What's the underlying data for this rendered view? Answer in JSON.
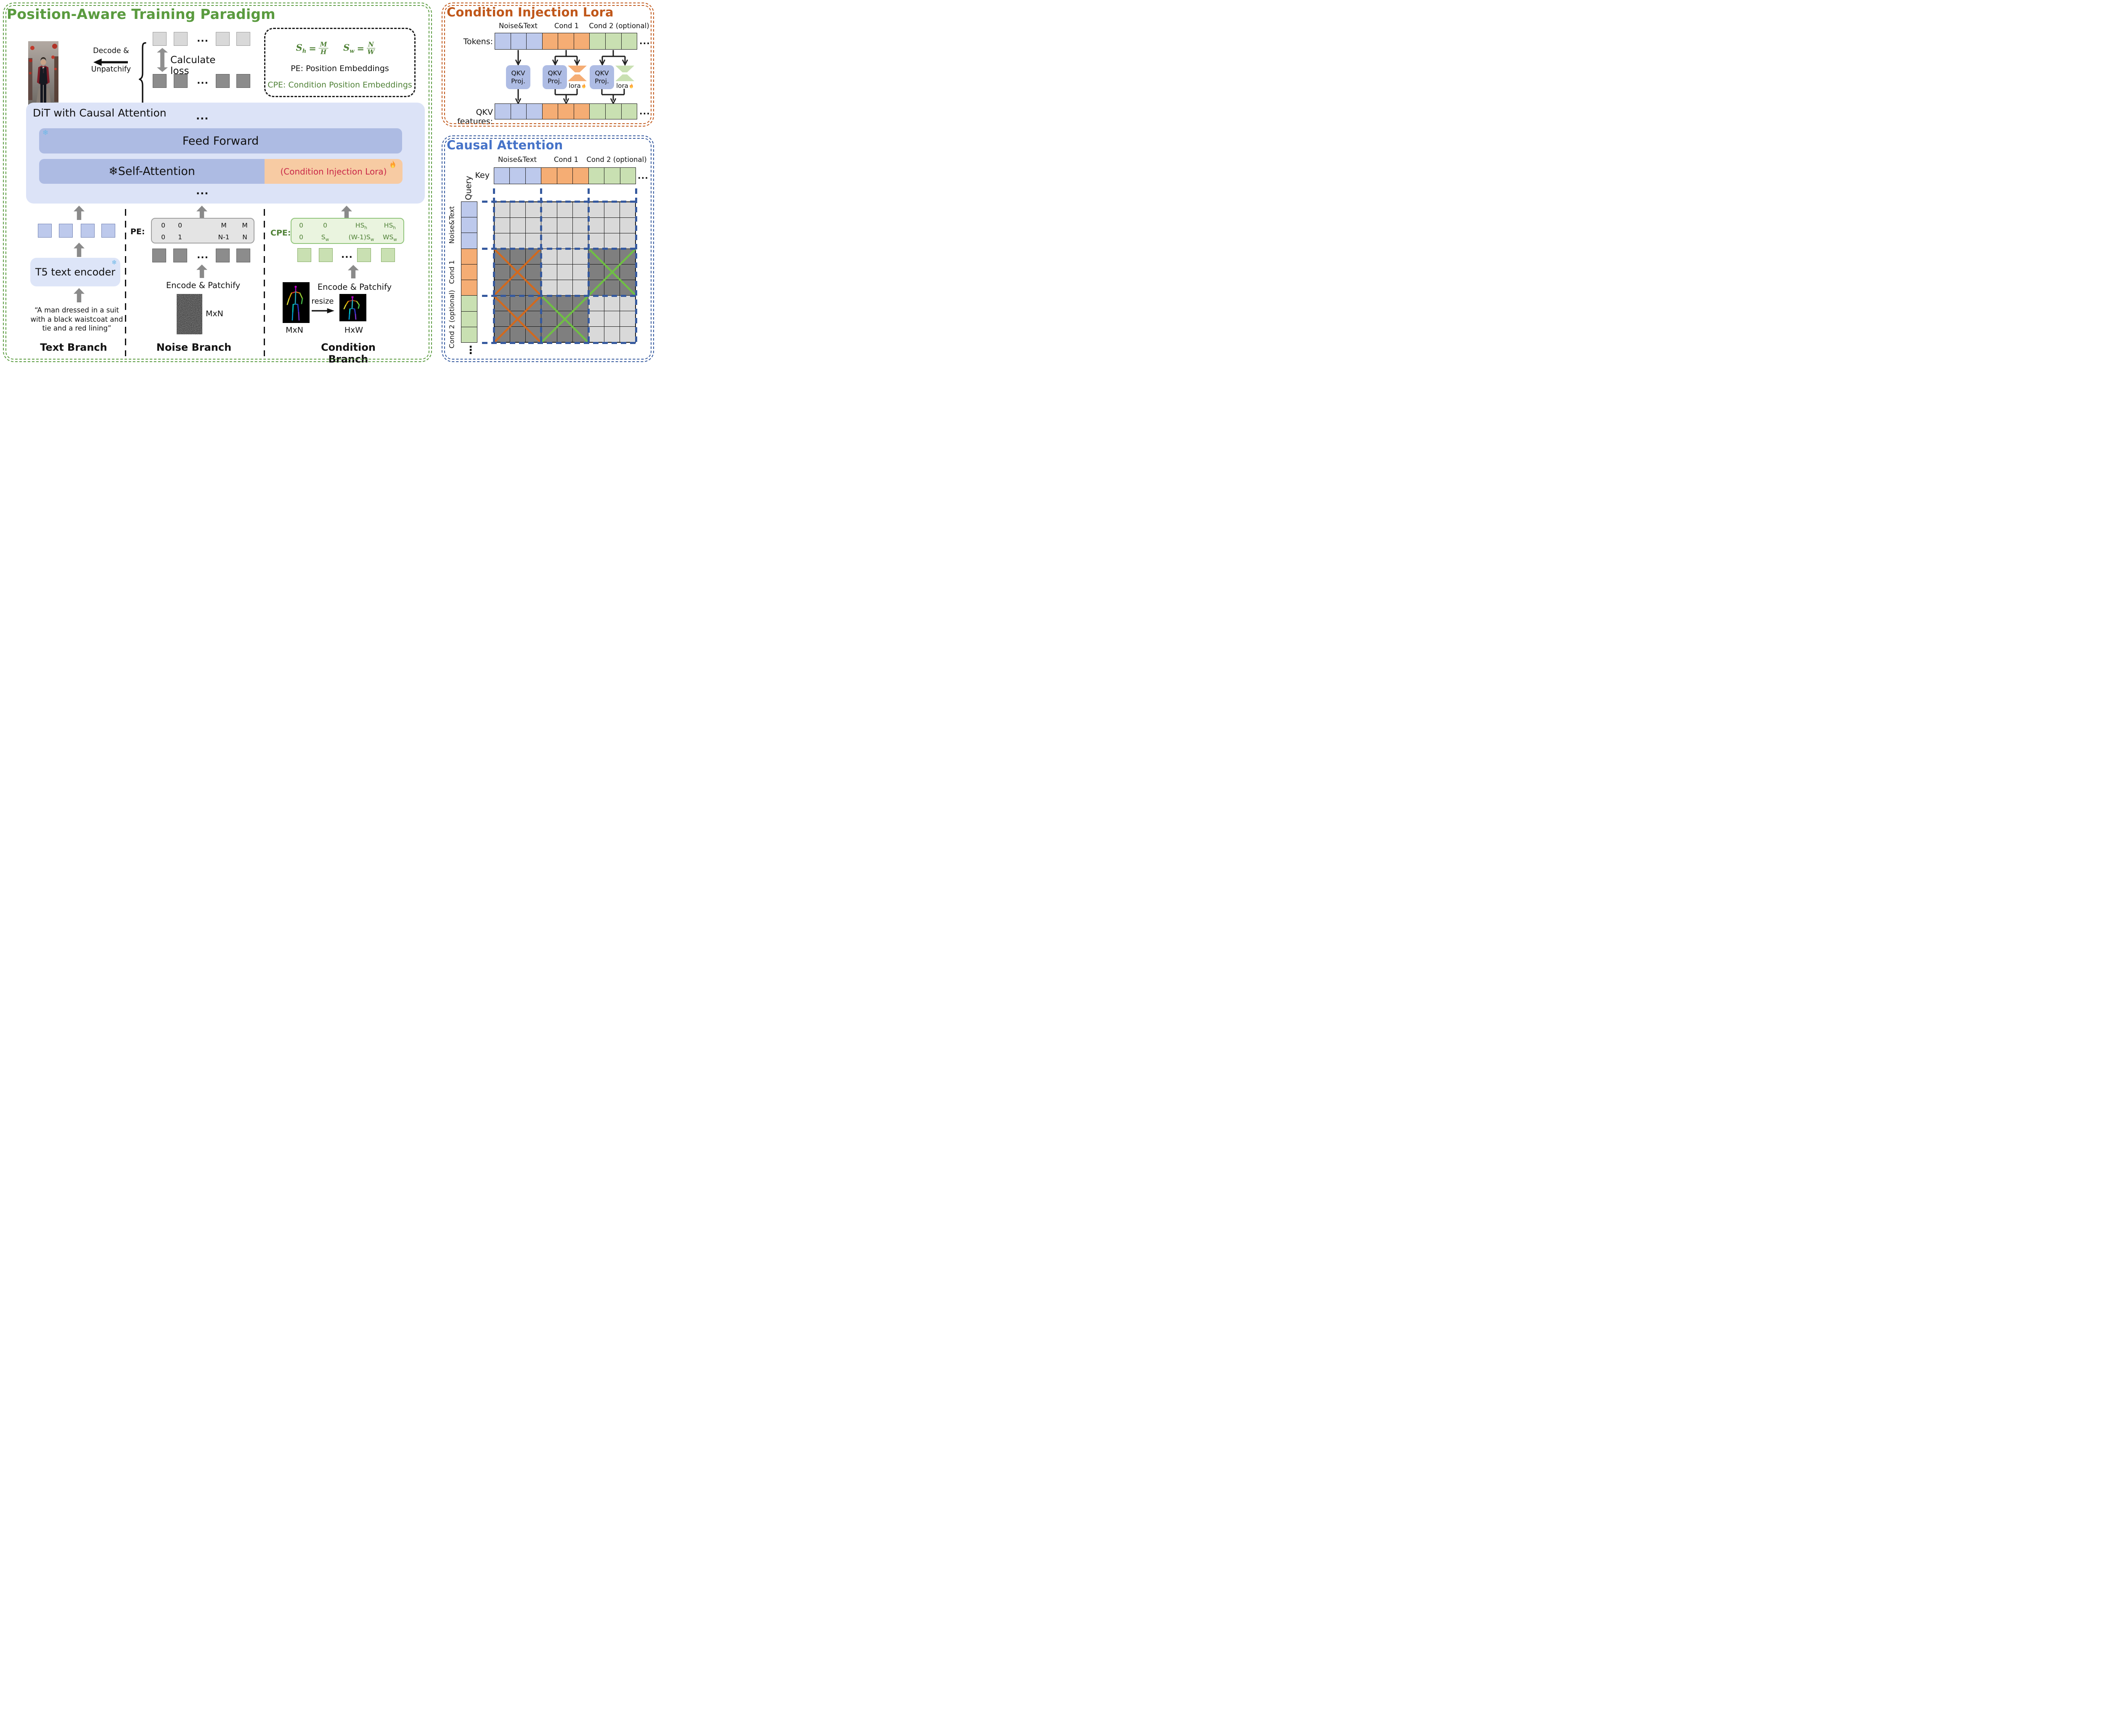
{
  "palette": {
    "blue": "#bdc9ec",
    "orange": "#f5ad74",
    "green": "#c9e0b2",
    "light": "#d9d9d9",
    "dark": "#7f7f7f",
    "x_orange": "#d2691e",
    "x_green": "#6fbf44",
    "green_accent": "#5a9b3f",
    "orange_accent": "#c0571a",
    "blue_accent": "#4673c8",
    "dash_blue": "#35599e",
    "crimson": "#c92848",
    "dit_bg": "#dce3f7",
    "bar_blue": "#adbbe3",
    "bar_orange": "#f7cba3"
  },
  "misc": {
    "dots": "...",
    "vdots": "⋮",
    "snowflake": "❄"
  },
  "shared": {
    "token_groups": [
      {
        "name": "noise_text",
        "color": "blue",
        "cells": 3
      },
      {
        "name": "cond1",
        "color": "orange",
        "cells": 3
      },
      {
        "name": "cond2",
        "color": "green",
        "cells": 3
      }
    ]
  },
  "left": {
    "title": "Position-Aware Training Paradigm",
    "decode_line1": "Decode &",
    "decode_line2": "Unpatchify",
    "calc_loss": "Calculate loss",
    "legend": {
      "sh": {
        "base": "S",
        "sub": "h",
        "eq": "=",
        "num": "M",
        "den": "H"
      },
      "sw": {
        "base": "S",
        "sub": "w",
        "eq": "=",
        "num": "N",
        "den": "W"
      },
      "pe": "PE: Position Embeddings",
      "cpe": "CPE: Condition Position Embeddings"
    },
    "dit": {
      "title": "DiT with Causal Attention",
      "feed_forward": "Feed Forward",
      "self_attention": "Self-Attention",
      "lora": "(Condition Injection Lora)"
    },
    "text_branch": {
      "label": "Text Branch",
      "encoder": "T5 text encoder",
      "prompt1": "“A man dressed in a suit",
      "prompt2": "with a black waistcoat and",
      "prompt3": "tie and a red lining”"
    },
    "noise_branch": {
      "label": "Noise Branch",
      "pe": "PE:",
      "encode": "Encode & Patchify",
      "size": "MxN",
      "matrix": {
        "r1": [
          "0",
          "0",
          "M",
          "M"
        ],
        "r2": [
          "0",
          "1",
          "N-1",
          "N"
        ]
      }
    },
    "cond_branch": {
      "label": "Condition Branch",
      "cpe": "CPE:",
      "encode": "Encode & Patchify",
      "resize": "resize",
      "size1": "MxN",
      "size2": "HxW",
      "matrix": {
        "r1c1": "0",
        "r1c2": "0",
        "r1c3_base": "HS",
        "r1c3_sub": "h",
        "r1c4_base": "HS",
        "r1c4_sub": "h",
        "r2c1": "0",
        "r2c2_base": "S",
        "r2c2_sub": "w",
        "r2c3_base": "(W-1)S",
        "r2c3_sub": "w",
        "r2c4_base": "WS",
        "r2c4_sub": "w"
      }
    }
  },
  "lora_panel": {
    "title": "Condition Injection Lora",
    "col_noise": "Noise&Text",
    "col_cond1": "Cond 1",
    "col_cond2": "Cond 2 (optional)",
    "tokens_label": "Tokens:",
    "features_label": "QKV features:",
    "qkv1": "QKV",
    "qkv2": "Proj.",
    "lora": "lora"
  },
  "causal": {
    "title": "Causal Attention",
    "col_noise": "Noise&Text",
    "col_cond1": "Cond 1",
    "col_cond2": "Cond 2 (optional)",
    "key": "Key",
    "query": "Query",
    "row_noise": "Noise&Text",
    "row_cond1": "Cond 1",
    "row_cond2": "Cond 2 (optional)",
    "matrix": {
      "shade": [
        [
          "light",
          "light",
          "light"
        ],
        [
          "dark",
          "light",
          "dark"
        ],
        [
          "dark",
          "dark",
          "light"
        ]
      ],
      "cross": [
        [
          null,
          null,
          null
        ],
        [
          "x_orange",
          null,
          "x_green"
        ],
        [
          "x_orange",
          "x_green",
          null
        ]
      ]
    }
  }
}
